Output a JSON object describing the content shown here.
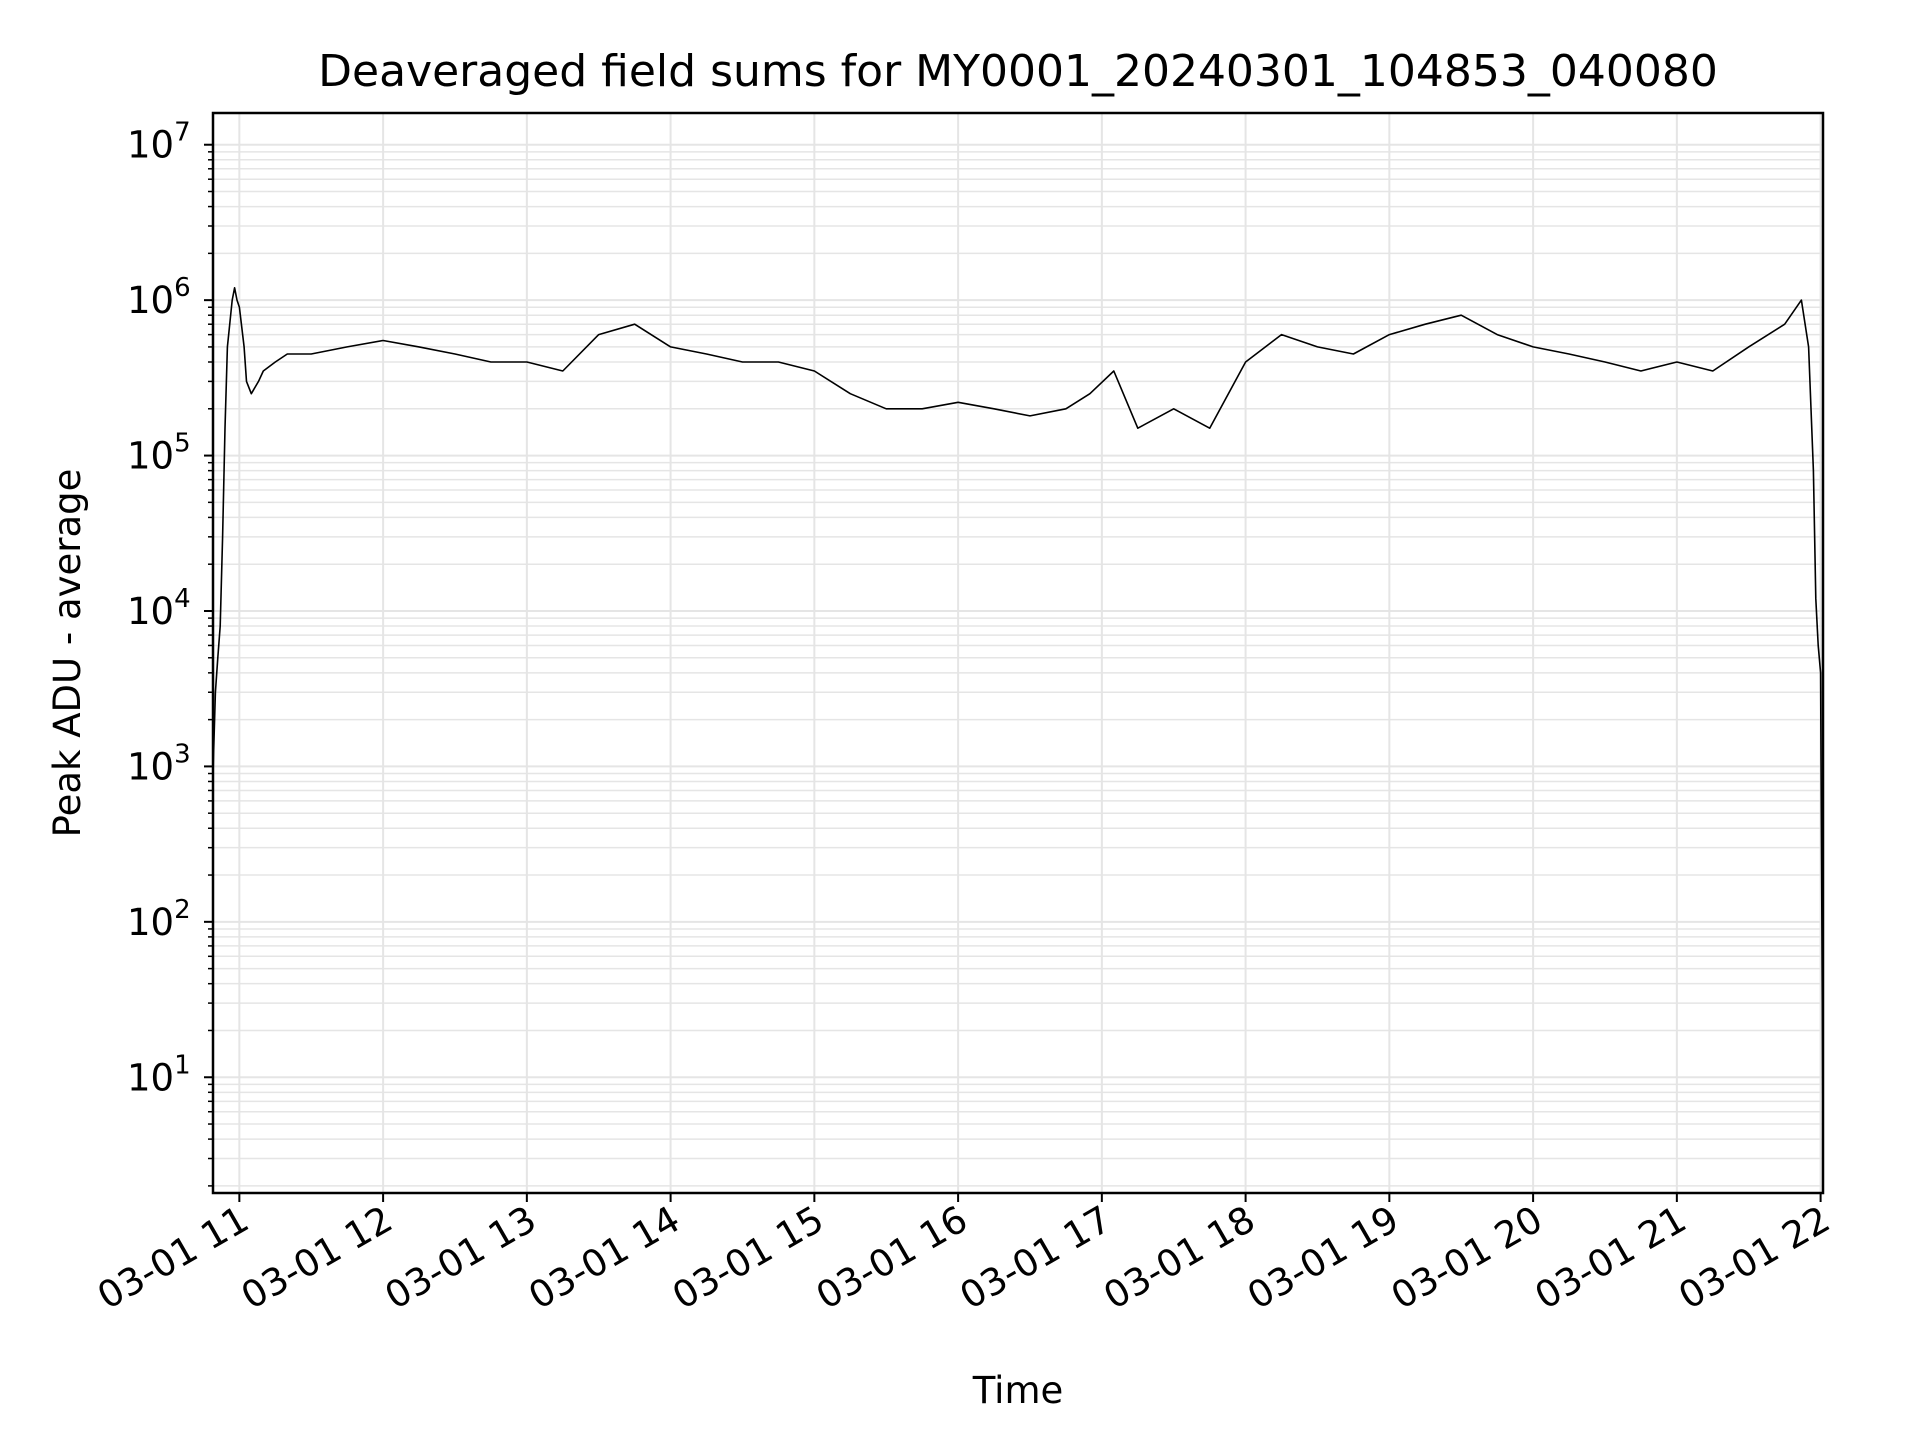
{
  "chart_data": {
    "type": "line",
    "title": "Deaveraged field sums for MY0001_20240301_104853_040080",
    "xlabel": "Time",
    "ylabel": "Peak ADU - average",
    "yscale": "log",
    "ylim": [
      1.8,
      16000000
    ],
    "xlim": [
      "2024-03-01 10:49",
      "2024-03-01 22:01"
    ],
    "grid": true,
    "line_color": "#000000",
    "grid_color": "#e5e5e5",
    "x_ticks": [
      "03-01 11",
      "03-01 12",
      "03-01 13",
      "03-01 14",
      "03-01 15",
      "03-01 16",
      "03-01 17",
      "03-01 18",
      "03-01 19",
      "03-01 20",
      "03-01 21",
      "03-01 22"
    ],
    "y_ticks": [
      {
        "base": "10",
        "exp": "1"
      },
      {
        "base": "10",
        "exp": "2"
      },
      {
        "base": "10",
        "exp": "3"
      },
      {
        "base": "10",
        "exp": "4"
      },
      {
        "base": "10",
        "exp": "5"
      },
      {
        "base": "10",
        "exp": "6"
      },
      {
        "base": "10",
        "exp": "7"
      }
    ],
    "series": [
      {
        "x": [
          "2024-03-01 10:49",
          "2024-03-01 10:50",
          "2024-03-01 10:51",
          "2024-03-01 10:52",
          "2024-03-01 10:53",
          "2024-03-01 10:54",
          "2024-03-01 10:55",
          "2024-03-01 10:57",
          "2024-03-01 10:58",
          "2024-03-01 10:59",
          "2024-03-01 11:00",
          "2024-03-01 11:02",
          "2024-03-01 11:03",
          "2024-03-01 11:05",
          "2024-03-01 11:08",
          "2024-03-01 11:10",
          "2024-03-01 11:15",
          "2024-03-01 11:20",
          "2024-03-01 11:30",
          "2024-03-01 11:45",
          "2024-03-01 12:00",
          "2024-03-01 12:15",
          "2024-03-01 12:30",
          "2024-03-01 12:45",
          "2024-03-01 13:00",
          "2024-03-01 13:15",
          "2024-03-01 13:30",
          "2024-03-01 13:45",
          "2024-03-01 14:00",
          "2024-03-01 14:15",
          "2024-03-01 14:30",
          "2024-03-01 14:45",
          "2024-03-01 15:00",
          "2024-03-01 15:15",
          "2024-03-01 15:30",
          "2024-03-01 15:45",
          "2024-03-01 16:00",
          "2024-03-01 16:15",
          "2024-03-01 16:30",
          "2024-03-01 16:45",
          "2024-03-01 16:55",
          "2024-03-01 17:05",
          "2024-03-01 17:15",
          "2024-03-01 17:30",
          "2024-03-01 17:45",
          "2024-03-01 18:00",
          "2024-03-01 18:15",
          "2024-03-01 18:30",
          "2024-03-01 18:45",
          "2024-03-01 19:00",
          "2024-03-01 19:15",
          "2024-03-01 19:30",
          "2024-03-01 19:45",
          "2024-03-01 20:00",
          "2024-03-01 20:15",
          "2024-03-01 20:30",
          "2024-03-01 20:45",
          "2024-03-01 21:00",
          "2024-03-01 21:15",
          "2024-03-01 21:30",
          "2024-03-01 21:45",
          "2024-03-01 21:52",
          "2024-03-01 21:55",
          "2024-03-01 21:57",
          "2024-03-01 21:58",
          "2024-03-01 21:59",
          "2024-03-01 22:00",
          "2024-03-01 22:01"
        ],
        "y": [
          900,
          3000,
          5000,
          8000,
          30000,
          150000,
          500000,
          1000000,
          1200000,
          1000000,
          900000,
          500000,
          300000,
          250000,
          300000,
          350000,
          400000,
          450000,
          450000,
          500000,
          550000,
          500000,
          450000,
          400000,
          400000,
          350000,
          600000,
          700000,
          500000,
          450000,
          400000,
          400000,
          350000,
          250000,
          200000,
          200000,
          220000,
          200000,
          180000,
          200000,
          250000,
          350000,
          150000,
          200000,
          150000,
          400000,
          600000,
          500000,
          450000,
          600000,
          700000,
          800000,
          600000,
          500000,
          450000,
          400000,
          350000,
          400000,
          350000,
          500000,
          700000,
          1000000,
          500000,
          80000,
          12000,
          6000,
          4000,
          4
        ]
      }
    ]
  }
}
